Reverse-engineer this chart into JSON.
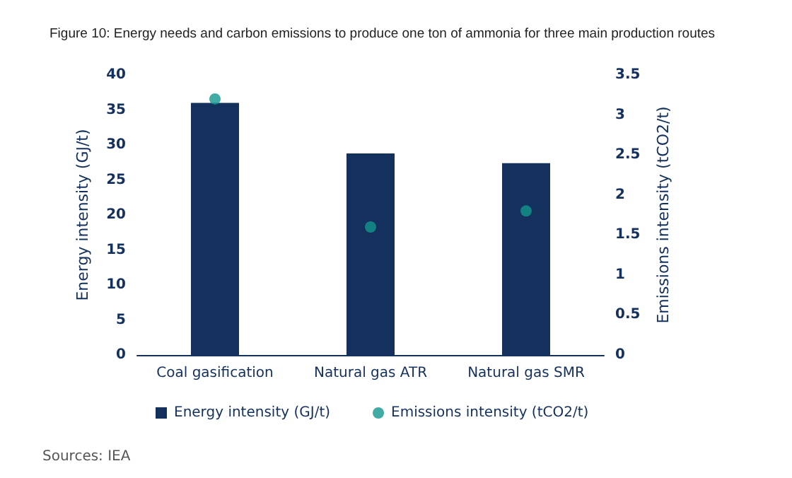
{
  "chart_data": {
    "type": "bar",
    "title": "Figure 10: Energy needs and carbon emissions to produce one ton of ammonia for three main production routes",
    "categories": [
      "Coal gasification",
      "Natural gas ATR",
      "Natural gas SMR"
    ],
    "series": [
      {
        "name": "Energy intensity (GJ/t)",
        "color": "#14305c",
        "values": [
          36,
          28.8,
          27.4
        ]
      },
      {
        "name": "Emissions intensity (tCO2/t)",
        "type": "scatter",
        "axis": "y2",
        "color": "#13968c",
        "values": [
          3.2,
          1.6,
          1.8
        ]
      }
    ],
    "ylabel": "Energy intensity (GJ/t)",
    "y2label": "Emissions intensity (tCO2/t)",
    "ylim": [
      0,
      40
    ],
    "yticks": [
      0,
      5,
      10,
      15,
      20,
      25,
      30,
      35,
      40
    ],
    "y2lim": [
      0,
      3.5
    ],
    "y2ticks": [
      0,
      0.5,
      1,
      1.5,
      2,
      2.5,
      3,
      3.5
    ],
    "legend": "bottom",
    "grid": false,
    "marker": "circle",
    "annotations": [
      "Sources: IEA"
    ]
  }
}
